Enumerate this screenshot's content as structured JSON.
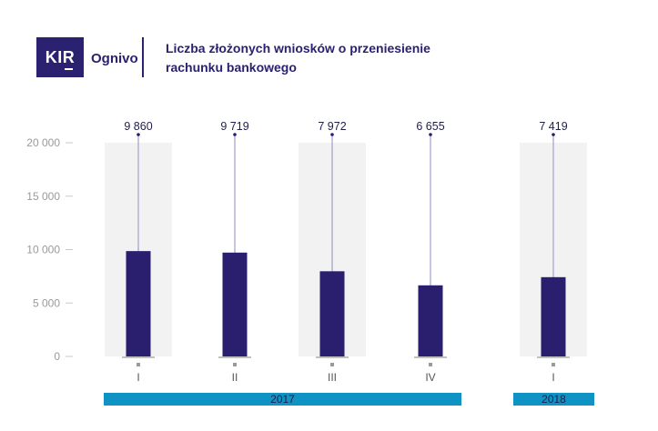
{
  "header": {
    "logo_text": "KIR",
    "brand": "Ognivo",
    "title": "Liczba złożonych wniosków o przeniesienie rachunku bankowego"
  },
  "colors": {
    "bar": "#2a1f6e",
    "band": "#f2f2f2",
    "year_bar": "#0e93c4",
    "marker_line": "#8e8ec4"
  },
  "chart_data": {
    "type": "bar",
    "title": "Liczba złożonych wniosków o przeniesienie rachunku bankowego",
    "categories": [
      "I",
      "II",
      "III",
      "IV",
      "I"
    ],
    "groups": [
      {
        "label": "2017",
        "categories": [
          "I",
          "II",
          "III",
          "IV"
        ]
      },
      {
        "label": "2018",
        "categories": [
          "I"
        ]
      }
    ],
    "values": [
      9860,
      9719,
      7972,
      6655,
      7419
    ],
    "value_labels": [
      "9 860",
      "9 719",
      "7 972",
      "6 655",
      "7 419"
    ],
    "shaded_categories": [
      0,
      2,
      4
    ],
    "yticks": [
      0,
      5000,
      10000,
      15000,
      20000
    ],
    "ytick_labels": [
      "0",
      "5 000",
      "10 000",
      "15 000",
      "20 000"
    ],
    "ylim": [
      0,
      20000
    ],
    "xlabel": "",
    "ylabel": "",
    "grid": false,
    "legend": "none"
  }
}
